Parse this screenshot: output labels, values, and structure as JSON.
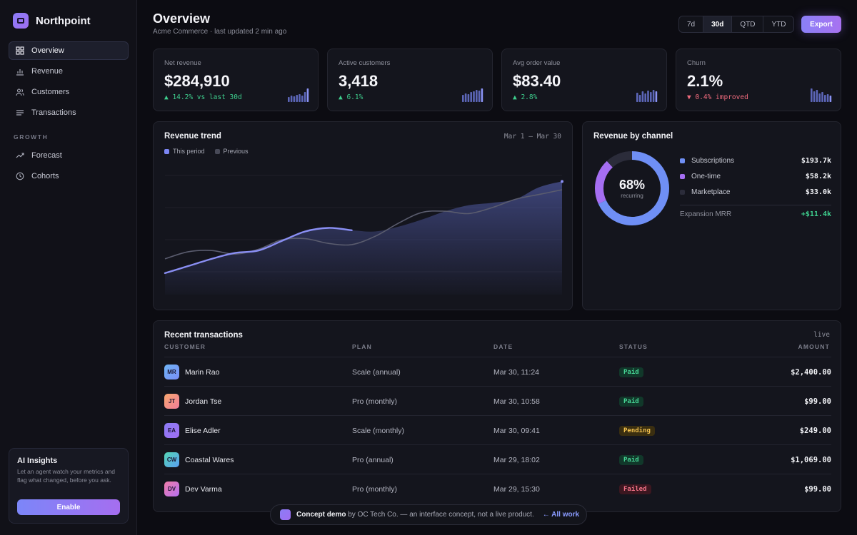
{
  "brand": {
    "name": "Northpoint"
  },
  "nav": {
    "items": [
      {
        "label": "Overview",
        "icon": "grid-icon",
        "active": true
      },
      {
        "label": "Revenue",
        "icon": "bar-chart-icon"
      },
      {
        "label": "Customers",
        "icon": "users-icon"
      },
      {
        "label": "Transactions",
        "icon": "list-icon"
      }
    ],
    "section": "GROWTH",
    "growth": [
      {
        "label": "Forecast",
        "icon": "trend-icon"
      },
      {
        "label": "Cohorts",
        "icon": "clock-icon"
      }
    ]
  },
  "ai": {
    "title": "AI Insights",
    "text": "Let an agent watch your metrics and flag what changed, before you ask.",
    "button": "Enable"
  },
  "header": {
    "title": "Overview",
    "subtitle": "Acme Commerce · last updated 2 min ago",
    "ranges": [
      "7d",
      "30d",
      "QTD",
      "YTD"
    ],
    "active_range": "30d",
    "export": "Export"
  },
  "kpis": [
    {
      "label": "Net revenue",
      "value": "$284,910",
      "delta": "▲ 14.2% vs last 30d",
      "trend": "up",
      "bars": [
        0.35,
        0.45,
        0.4,
        0.5,
        0.55,
        0.45,
        0.7,
        0.95
      ]
    },
    {
      "label": "Active customers",
      "value": "3,418",
      "delta": "▲ 6.1%",
      "trend": "up",
      "bars": [
        0.5,
        0.6,
        0.55,
        0.7,
        0.75,
        0.85,
        0.8,
        0.95
      ]
    },
    {
      "label": "Avg order value",
      "value": "$83.40",
      "delta": "▲ 2.8%",
      "trend": "up",
      "bars": [
        0.65,
        0.5,
        0.75,
        0.6,
        0.8,
        0.7,
        0.85,
        0.75
      ]
    },
    {
      "label": "Churn",
      "value": "2.1%",
      "delta": "▼ 0.4% improved",
      "trend": "down",
      "bars": [
        0.95,
        0.75,
        0.85,
        0.6,
        0.7,
        0.5,
        0.55,
        0.45
      ]
    }
  ],
  "trend_card": {
    "title": "Revenue trend",
    "range": "Mar 1 — Mar 30",
    "legend": {
      "current": "This period",
      "previous": "Previous"
    }
  },
  "chart_data": {
    "type": "area",
    "title": "Revenue trend",
    "x_range": [
      "Mar 1",
      "Mar 30"
    ],
    "series": [
      {
        "name": "This period",
        "values": [
          0.18,
          0.24,
          0.3,
          0.35,
          0.37,
          0.45,
          0.53,
          0.56,
          0.54,
          0.53,
          0.57,
          0.63,
          0.7,
          0.75,
          0.77,
          0.8,
          0.9,
          0.95
        ]
      },
      {
        "name": "Previous",
        "values": [
          0.3,
          0.36,
          0.37,
          0.34,
          0.38,
          0.46,
          0.47,
          0.43,
          0.42,
          0.49,
          0.6,
          0.69,
          0.7,
          0.68,
          0.73,
          0.8,
          0.84,
          0.88
        ]
      }
    ],
    "colors": {
      "current": "#8a8ff4",
      "previous": "#5a5c6e",
      "area": "#4a5396"
    },
    "grid": true
  },
  "channel_card": {
    "title": "Revenue by channel",
    "donut_value": "68%",
    "donut_label": "recurring",
    "channels": [
      {
        "name": "Subscriptions",
        "value": "$193.7k",
        "color": "#6f8ff5",
        "share": 0.68
      },
      {
        "name": "One-time",
        "value": "$58.2k",
        "color": "#a56ef2",
        "share": 0.2
      },
      {
        "name": "Marketplace",
        "value": "$33.0k",
        "color": "#2b2c3a",
        "share": 0.12
      }
    ],
    "expansion_label": "Expansion MRR",
    "expansion_value": "+$11.4k"
  },
  "transactions": {
    "title": "Recent transactions",
    "live": "live",
    "columns": {
      "customer": "CUSTOMER",
      "plan": "PLAN",
      "date": "DATE",
      "status": "STATUS",
      "amount": "AMOUNT"
    },
    "rows": [
      {
        "initials": "MR",
        "name": "Marin Rao",
        "plan": "Scale (annual)",
        "date": "Mar 30, 11:24",
        "status": "Paid",
        "status_type": "paid",
        "amount": "$2,400.00",
        "avatar": "linear-gradient(135deg,#6fb6f7,#7a8cf5)"
      },
      {
        "initials": "JT",
        "name": "Jordan Tse",
        "plan": "Pro (monthly)",
        "date": "Mar 30, 10:58",
        "status": "Paid",
        "status_type": "paid",
        "amount": "$99.00",
        "avatar": "linear-gradient(135deg,#f7a76f,#f07d9a)"
      },
      {
        "initials": "EA",
        "name": "Elise Adler",
        "plan": "Scale (monthly)",
        "date": "Mar 30, 09:41",
        "status": "Pending",
        "status_type": "pending",
        "amount": "$249.00",
        "avatar": "linear-gradient(135deg,#8b7cf6,#a06ef2)"
      },
      {
        "initials": "CW",
        "name": "Coastal Wares",
        "plan": "Pro (annual)",
        "date": "Mar 29, 18:02",
        "status": "Paid",
        "status_type": "paid",
        "amount": "$1,069.00",
        "avatar": "linear-gradient(135deg,#55d6b5,#5a9ef2)"
      },
      {
        "initials": "DV",
        "name": "Dev Varma",
        "plan": "Pro (monthly)",
        "date": "Mar 29, 15:30",
        "status": "Failed",
        "status_type": "failed",
        "amount": "$99.00",
        "avatar": "linear-gradient(135deg,#f07da8,#b570f2)"
      }
    ]
  },
  "footer": {
    "bold": "Concept demo",
    "text": "by OC Tech Co. — an interface concept, not a live product.",
    "link": "← All work"
  }
}
